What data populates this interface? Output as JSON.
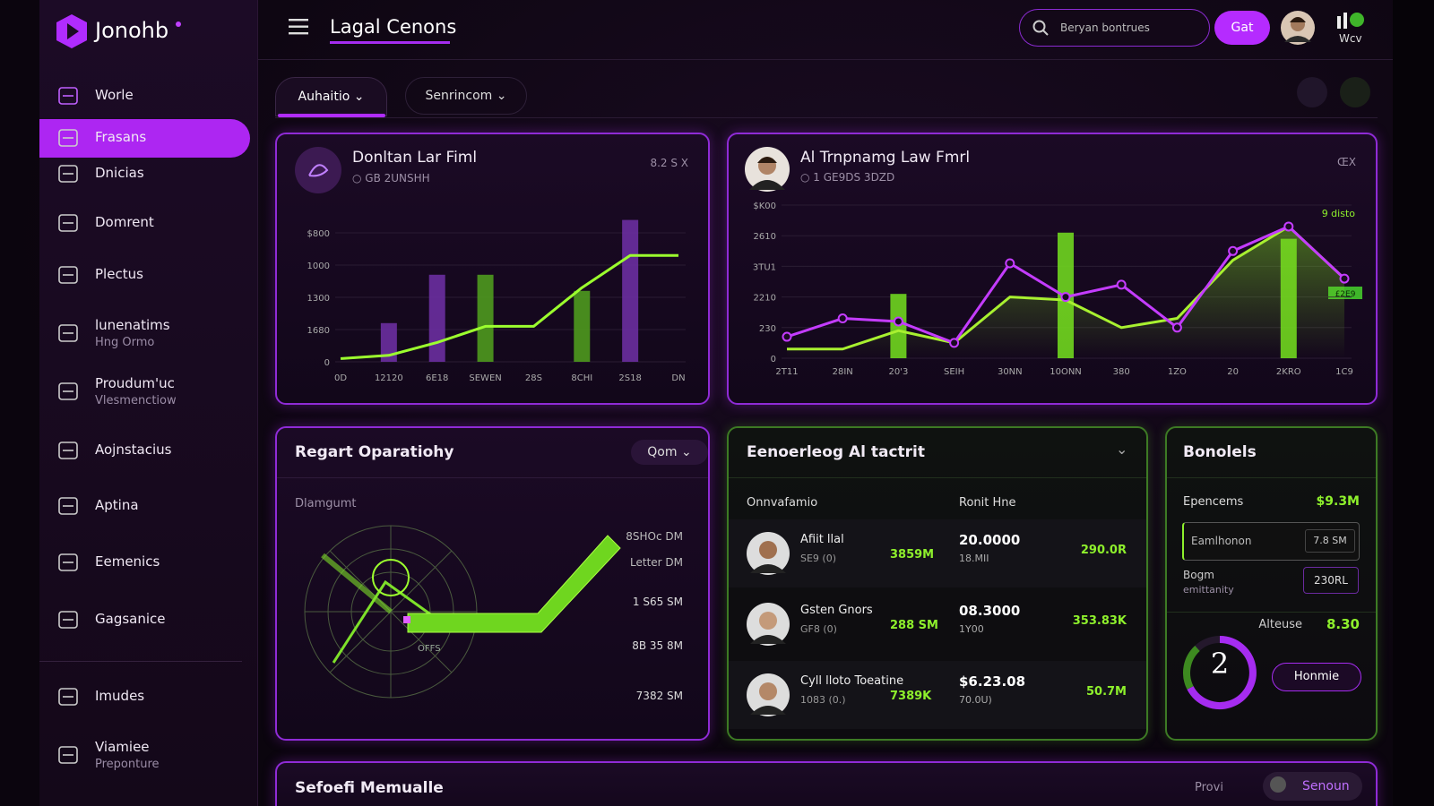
{
  "brand": "Jonohb",
  "nav": [
    {
      "label": "Worle"
    },
    {
      "label": "Frasans"
    },
    {
      "label": "Dnicias"
    },
    {
      "label": "Domrent"
    },
    {
      "label": "Plectus"
    },
    {
      "label": "lunenatims",
      "sub": "Hng Ormo"
    },
    {
      "label": "Proudum'uc",
      "sub": "Vlesmenctiow"
    },
    {
      "label": "Aojnstacius"
    },
    {
      "label": "Aptina"
    },
    {
      "label": "Eemenics"
    },
    {
      "label": "Gagsanice"
    },
    {
      "label": "Imudes"
    },
    {
      "label": "Viamiee",
      "sub": "Preponture"
    }
  ],
  "header": {
    "title": "Lagal Cenons",
    "search": "Beryan bontrues",
    "button": "Gat",
    "user": "Wcv"
  },
  "tabs": [
    "Auhaitio",
    "Senrincom"
  ],
  "card1": {
    "title": "Donltan Lar Fiml",
    "subtitle": "GB 2UNSHH",
    "corner": "8.2 S X",
    "chart": {
      "type": "bar-line",
      "categories": [
        "0D",
        "12120",
        "6E18",
        "SEWEN",
        "28S",
        "8CHI",
        "2S18",
        "DN"
      ],
      "ylim": [
        0,
        4.5
      ],
      "yticks": [
        {
          "value": 0,
          "label": "0"
        },
        {
          "value": 1,
          "label": "1680"
        },
        {
          "value": 2,
          "label": "1300"
        },
        {
          "value": 3,
          "label": "1000"
        },
        {
          "value": 4,
          "label": "$800"
        }
      ],
      "series": [
        {
          "type": "bar",
          "color": "#6a2fa0",
          "values": [
            null,
            1.2,
            2.7,
            null,
            null,
            null,
            4.4,
            null
          ]
        },
        {
          "type": "bar",
          "color": "#4e9a1e",
          "values": [
            null,
            null,
            null,
            2.7,
            null,
            2.2,
            null,
            null
          ]
        },
        {
          "type": "line",
          "color": "#9cff2e",
          "values": [
            0.1,
            0.2,
            0.6,
            1.1,
            1.1,
            2.3,
            3.3,
            3.3
          ]
        }
      ]
    }
  },
  "card2": {
    "title": "Al Trnpnamg Law Fmrl",
    "subtitle": "1 GE9DS 3DZD",
    "corner": "ŒX",
    "annotation": "9 disto",
    "badge": "£2E9",
    "chart": {
      "type": "bar-line",
      "categories": [
        "2T11",
        "28IN",
        "20'3",
        "SEIH",
        "30NN",
        "10ONN",
        "380",
        "1ZO",
        "20",
        "2KRO",
        "1C9"
      ],
      "ylim": [
        0,
        5
      ],
      "yticks": [
        {
          "value": 0,
          "label": "0"
        },
        {
          "value": 1,
          "label": "230"
        },
        {
          "value": 2,
          "label": "2210"
        },
        {
          "value": 3,
          "label": "3TU1"
        },
        {
          "value": 4,
          "label": "2610"
        },
        {
          "value": 5,
          "label": "$K00"
        }
      ],
      "series": [
        {
          "type": "bar",
          "color": "#6fd61f",
          "values": [
            null,
            null,
            2.1,
            null,
            null,
            4.1,
            null,
            null,
            null,
            3.9,
            null
          ]
        },
        {
          "type": "line",
          "color": "#a8f030",
          "area": true,
          "values": [
            0.3,
            0.3,
            0.9,
            0.5,
            2.0,
            1.9,
            1.0,
            1.3,
            3.2,
            4.3,
            2.6
          ]
        },
        {
          "type": "line",
          "color": "#c43cff",
          "markers": true,
          "values": [
            0.7,
            1.3,
            1.2,
            0.5,
            3.1,
            2.0,
            2.4,
            1.0,
            3.5,
            4.3,
            2.6
          ]
        }
      ]
    }
  },
  "card3": {
    "title": "Regart Oparatiohy",
    "dropdown": "Qom",
    "label": "Dlamgumt",
    "center": "OFFS",
    "levels": [
      "8SHOc DM",
      "Letter DM",
      "1 S65 SM",
      "8B 35 8M",
      "7382 SM"
    ]
  },
  "card4": {
    "title": "Eenoerleog Al tactrit",
    "columns": [
      "Onnvafamio",
      "Ronit Hne"
    ],
    "rows": [
      {
        "name": "Afiit llal",
        "sub": "SE9 (0)",
        "value": "3859M",
        "amount": "20.0000",
        "amount_sub": "18.MII",
        "total": "290.0R"
      },
      {
        "name": "Gsten Gnors",
        "sub": "GF8 (0)",
        "value": "288 SM",
        "amount": "08.3000",
        "amount_sub": "1Y00",
        "total": "353.83K"
      },
      {
        "name": "Cyll lloto Toeatine",
        "sub": "1083 (0.)",
        "value": "7389K",
        "amount": "$6.23.08",
        "amount_sub": "70.0U)",
        "total": "50.7M"
      }
    ]
  },
  "card5": {
    "title": "Bonolels",
    "expense_label": "Epencems",
    "expense_value": "$9.3M",
    "input_label": "Eamlhonon",
    "input_value": "7.8 SM",
    "field_label": "Bogm",
    "field_sub": "emittanity",
    "field_value": "230RL",
    "ring": "2",
    "stat_label": "Alteuse",
    "stat_value": "8.30",
    "button": "Honmie"
  },
  "bottom": {
    "title": "Sefoefi Memualle",
    "link": "Provi",
    "pill": "Senoun"
  }
}
